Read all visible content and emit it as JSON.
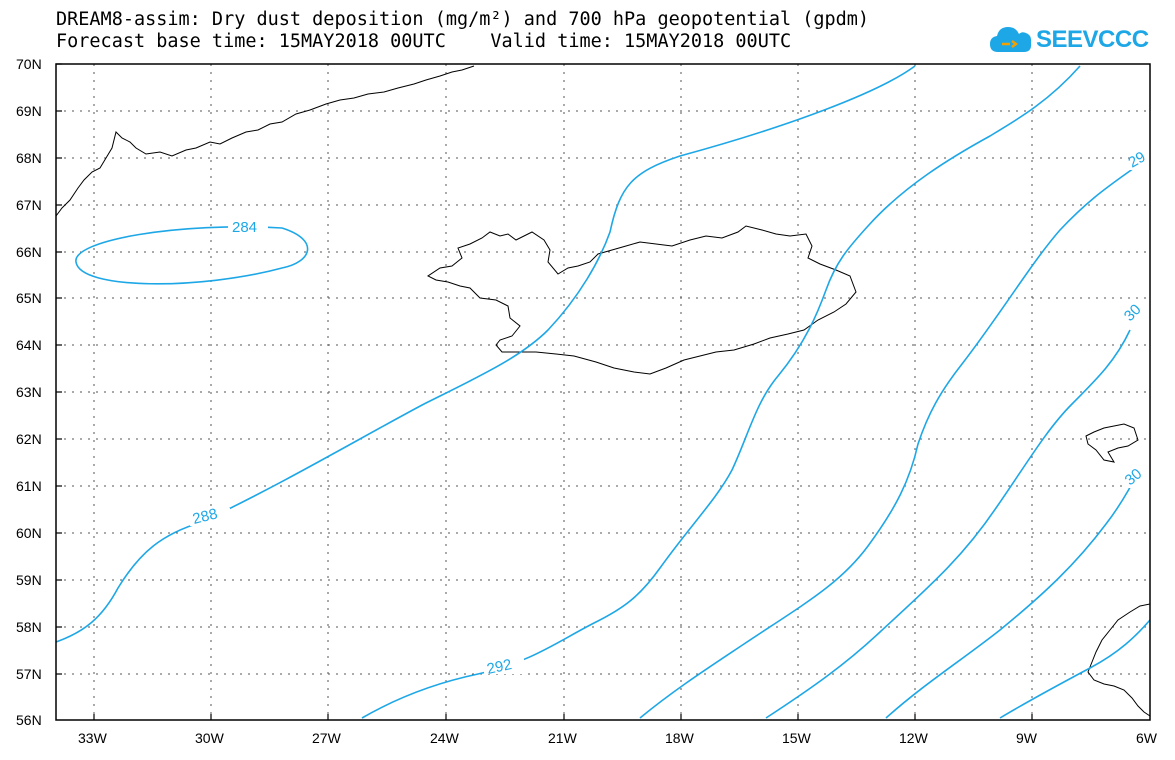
{
  "title": {
    "line1": "DREAM8-assim: Dry dust deposition (mg/m²) and 700 hPa geopotential (gpdm)",
    "line2": "Forecast base time: 15MAY2018 00UTC    Valid time: 15MAY2018 00UTC"
  },
  "logo": {
    "text": "SEEVCCC",
    "color": "#1ea7e6",
    "icon": "cloud-logo-icon"
  },
  "map": {
    "lon_range": [
      -34.5,
      -6
    ],
    "lat_range": [
      56,
      70
    ],
    "lat_labels": [
      "70N",
      "69N",
      "68N",
      "67N",
      "66N",
      "65N",
      "64N",
      "63N",
      "62N",
      "61N",
      "60N",
      "59N",
      "58N",
      "57N",
      "56N"
    ],
    "lon_labels": [
      "33W",
      "30W",
      "27W",
      "24W",
      "21W",
      "18W",
      "15W",
      "12W",
      "9W",
      "6W"
    ],
    "grid": "dotted",
    "contour_color": "#1ea7e6",
    "contour_labels": [
      "284",
      "288",
      "292",
      "29",
      "30",
      "30"
    ]
  }
}
